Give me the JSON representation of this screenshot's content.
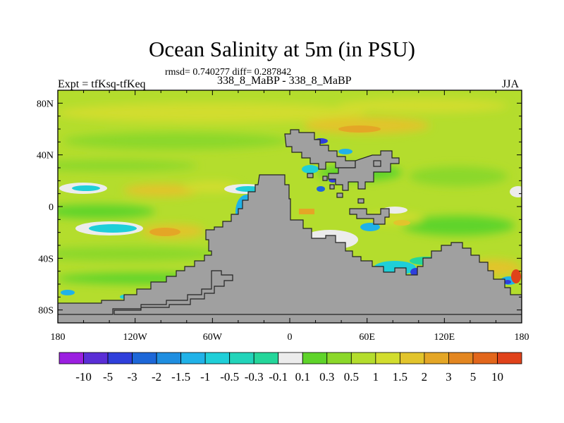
{
  "chart_data": {
    "type": "heatmap",
    "title": "Ocean Salinity at 5m (in PSU)",
    "subtitle": "rmsd= 0.740277 diff= 0.287842",
    "left_string": "Expt = tfKsq-tfKeq",
    "center_string": "338_8_MaBP - 338_8_MaBP",
    "right_string": "JJA",
    "x_ticks": [
      "180",
      "120W",
      "60W",
      "0",
      "60E",
      "120E",
      "180"
    ],
    "y_ticks": [
      "80N",
      "40N",
      "0",
      "40S",
      "80S"
    ],
    "xlim": [
      -180,
      180
    ],
    "ylim": [
      -90,
      90
    ],
    "colorbar": {
      "labels": [
        "-10",
        "-5",
        "-3",
        "-2",
        "-1.5",
        "-1",
        "-0.5",
        "-0.3",
        "-0.1",
        "0.1",
        "0.3",
        "0.5",
        "1",
        "1.5",
        "2",
        "3",
        "5",
        "10"
      ],
      "colors": [
        "#9b1fe0",
        "#5a2ed6",
        "#2f3fdb",
        "#1d67d8",
        "#1f8ee0",
        "#20b2e8",
        "#1fcfd8",
        "#22d4ba",
        "#24d69a",
        "#ececec",
        "#5fd42a",
        "#8bd82a",
        "#b4dd2d",
        "#d2dd2e",
        "#e2c42c",
        "#e4a626",
        "#e38620",
        "#e2661b",
        "#e0421a"
      ]
    },
    "land_color": "#a0a0a0"
  }
}
